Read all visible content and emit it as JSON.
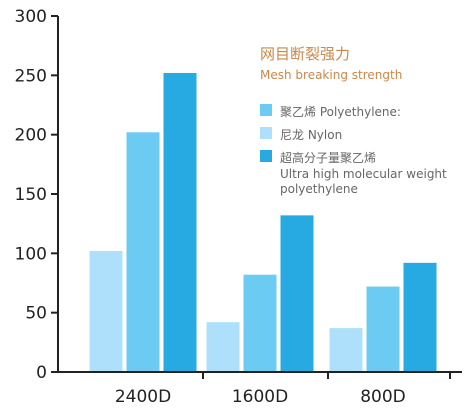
{
  "chart_data": {
    "type": "bar",
    "title": "网目断裂强力",
    "subtitle": "Mesh breaking strength",
    "categories": [
      "2400D",
      "1600D",
      "800D"
    ],
    "series": [
      {
        "name": "尼龙 Nylon",
        "color": "#aee0fb",
        "values": [
          102,
          42,
          37
        ]
      },
      {
        "name": "聚乙烯 Polyethylene:",
        "color": "#6ccbf2",
        "values": [
          202,
          82,
          72
        ]
      },
      {
        "name": "超高分子量聚乙烯",
        "name_en": "Ultra high molecular weight polyethylene",
        "name_en_lines": [
          "Ultra high molecular weight",
          "polyethylene"
        ],
        "color": "#27a9e1",
        "values": [
          252,
          132,
          92
        ]
      }
    ],
    "legend_order": [
      {
        "label": "聚乙烯 Polyethylene:",
        "color": "#6ccbf2"
      },
      {
        "label": "尼龙 Nylon",
        "color": "#aee0fb"
      },
      {
        "label": "超高分子量聚乙烯",
        "sublabel_lines": [
          "Ultra high molecular weight",
          "polyethylene"
        ],
        "color": "#27a9e1"
      }
    ],
    "ylim": [
      0,
      300
    ],
    "yticks": [
      0,
      50,
      100,
      150,
      200,
      250,
      300
    ],
    "grid": false,
    "legend_position": "top-right",
    "xlabel": "",
    "ylabel": ""
  }
}
